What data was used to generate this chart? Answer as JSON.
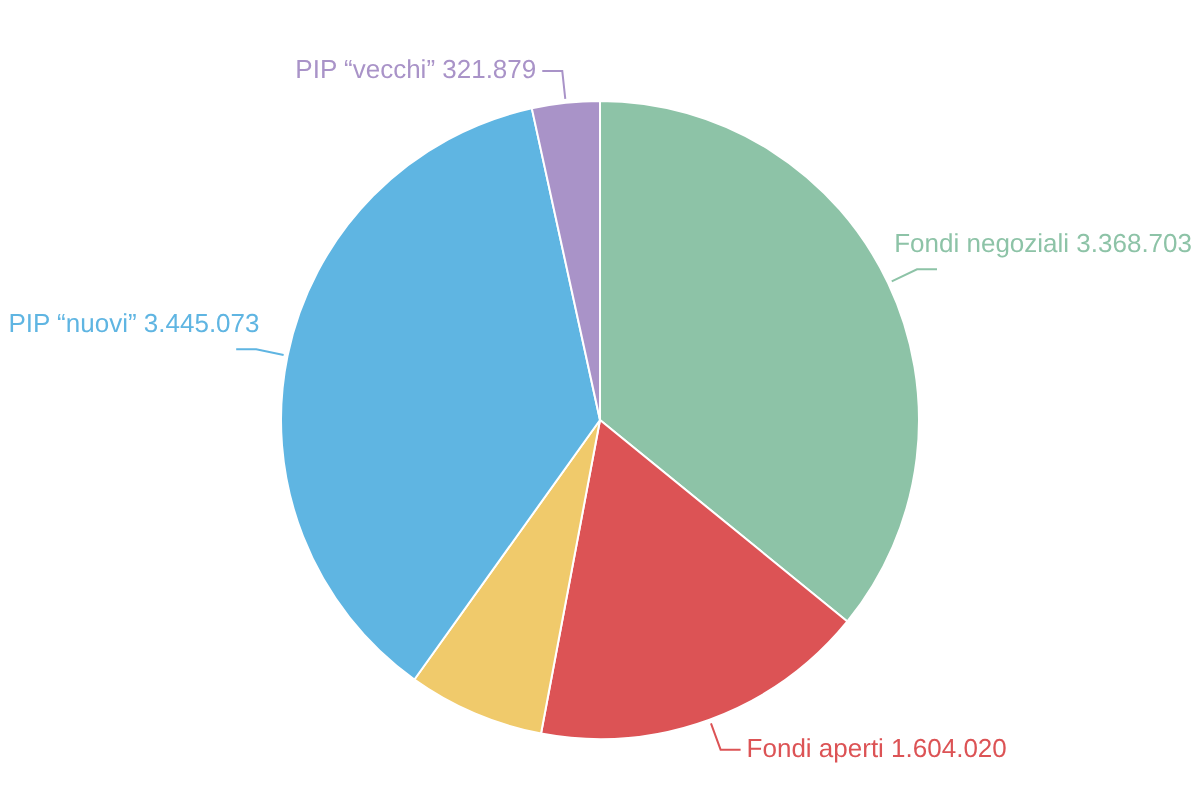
{
  "chart_data": {
    "type": "pie",
    "categories": [
      "Fondi negoziali",
      "Fondi aperti",
      null,
      "PIP “nuovi”",
      "PIP “vecchi”"
    ],
    "values": [
      3368703,
      1604020,
      650000,
      3445073,
      321879
    ],
    "value_labels": [
      "3.368.703",
      "1.604.020",
      null,
      "3.445.073",
      "321.879"
    ],
    "colors": [
      "#8dc3a7",
      "#dc5355",
      "#f0ca6b",
      "#5fb5e2",
      "#a993c8"
    ],
    "legend": false
  }
}
